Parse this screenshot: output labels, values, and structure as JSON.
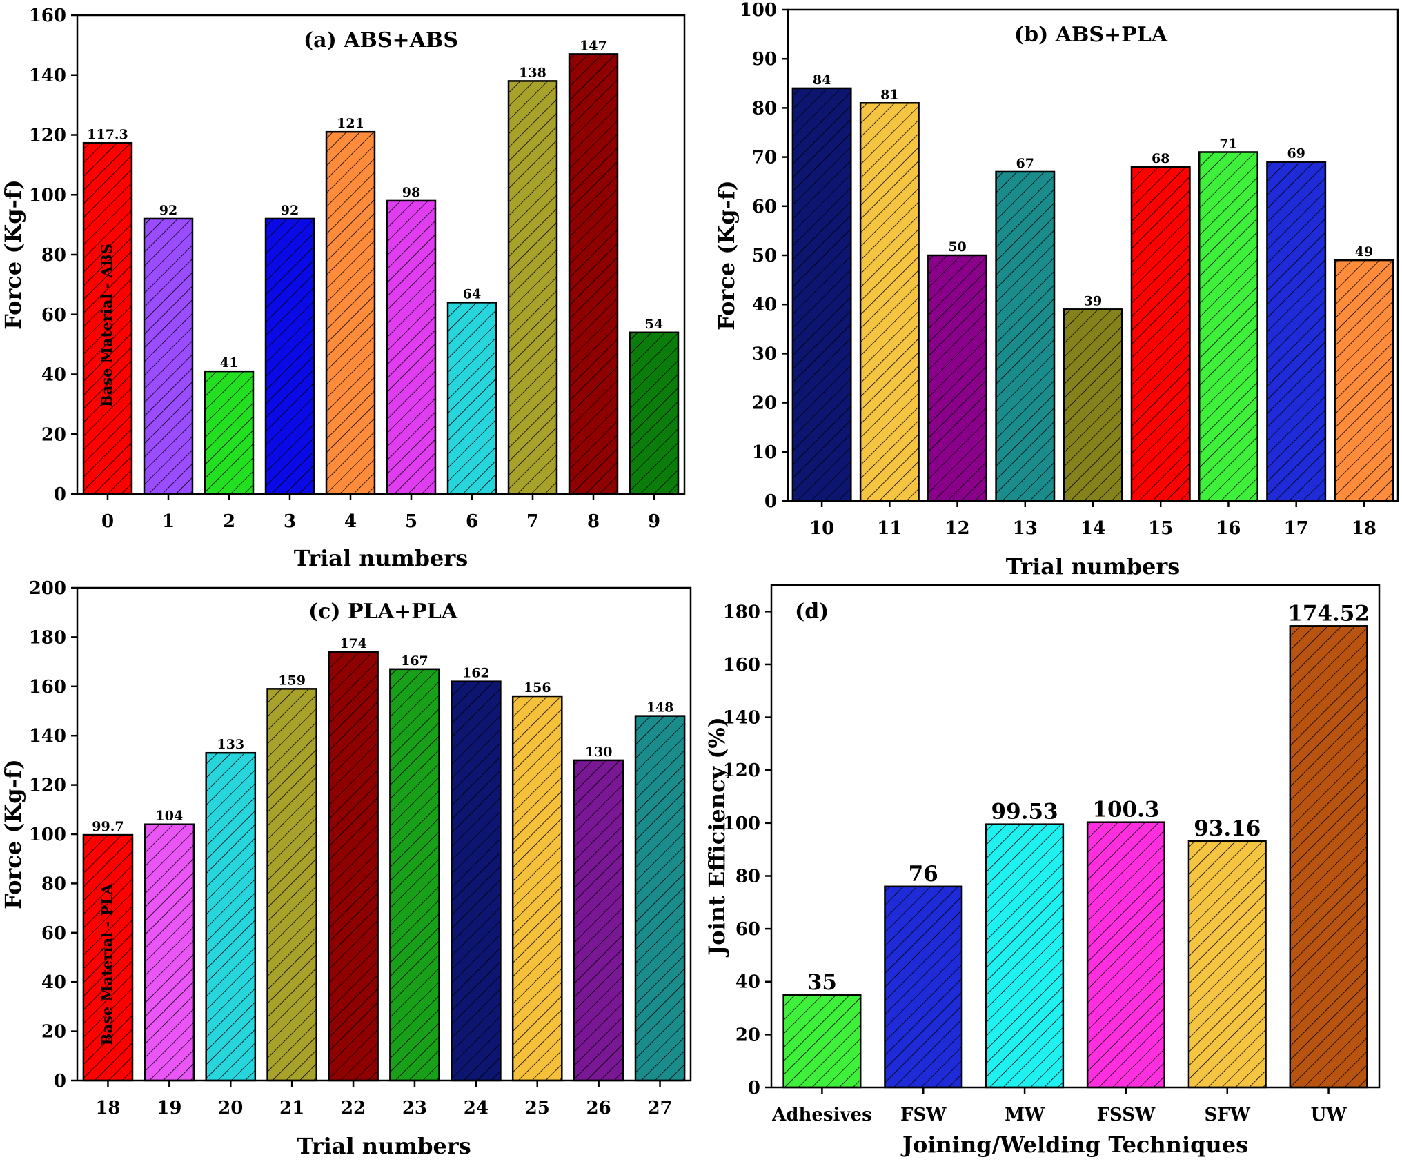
{
  "colors": {
    "red": "#ff0000",
    "purple": "#9a4dff",
    "green": "#22e01f",
    "blue": "#0a0ae6",
    "orange": "#ff8c3a",
    "magenta": "#e03cf0",
    "cyan": "#27d6dc",
    "olive": "#a8a22a",
    "darkred": "#8f0000",
    "darkgreen": "#0a7d0a",
    "navy": "#0c1570",
    "gold": "#f5c542",
    "violet": "#8a008a",
    "teal": "#1a8c8c",
    "darkolive": "#85821b",
    "lime": "#3ff03a",
    "royal": "#1e2bd6",
    "pink": "#ff2fdf",
    "aqua": "#1ff0f0",
    "brown": "#b85410",
    "lightmagenta": "#ea55f5",
    "purple2": "#7a1795",
    "green2": "#18a018",
    "gold2": "#f5c03a"
  },
  "chart_data": [
    {
      "type": "bar",
      "title": "(a) ABS+ABS",
      "xlabel": "Trial numbers",
      "ylabel": "Force (Kg-f)",
      "ylim": [
        0,
        160
      ],
      "yticks": [
        0,
        20,
        40,
        60,
        80,
        100,
        120,
        140,
        160
      ],
      "categories": [
        "0",
        "1",
        "2",
        "3",
        "4",
        "5",
        "6",
        "7",
        "8",
        "9"
      ],
      "values": [
        117.3,
        92,
        41,
        92,
        121,
        98,
        64,
        138,
        147,
        54
      ],
      "labels": [
        "117.3",
        "92",
        "41",
        "92",
        "121",
        "98",
        "64",
        "138",
        "147",
        "54"
      ],
      "bar_colors": [
        "red",
        "purple",
        "green",
        "blue",
        "orange",
        "magenta",
        "cyan",
        "olive",
        "darkred",
        "darkgreen"
      ],
      "base_note": "Base Material - ABS"
    },
    {
      "type": "bar",
      "title": "(b) ABS+PLA",
      "xlabel": "Trial numbers",
      "ylabel": "Force (Kg-f)",
      "ylim": [
        0,
        100
      ],
      "yticks": [
        0,
        10,
        20,
        30,
        40,
        50,
        60,
        70,
        80,
        90,
        100
      ],
      "categories": [
        "10",
        "11",
        "12",
        "13",
        "14",
        "15",
        "16",
        "17",
        "18"
      ],
      "values": [
        84,
        81,
        50,
        67,
        39,
        68,
        71,
        69,
        49
      ],
      "labels": [
        "84",
        "81",
        "50",
        "67",
        "39",
        "68",
        "71",
        "69",
        "49"
      ],
      "bar_colors": [
        "navy",
        "gold",
        "violet",
        "teal",
        "darkolive",
        "red",
        "lime",
        "royal",
        "orange"
      ]
    },
    {
      "type": "bar",
      "title": "(c) PLA+PLA",
      "xlabel": "Trial numbers",
      "ylabel": "Force (Kg-f)",
      "ylim": [
        0,
        200
      ],
      "yticks": [
        0,
        20,
        40,
        60,
        80,
        100,
        120,
        140,
        160,
        180,
        200
      ],
      "categories": [
        "18",
        "19",
        "20",
        "21",
        "22",
        "23",
        "24",
        "25",
        "26",
        "27"
      ],
      "values": [
        99.7,
        104,
        133,
        159,
        174,
        167,
        162,
        156,
        130,
        148
      ],
      "labels": [
        "99.7",
        "104",
        "133",
        "159",
        "174",
        "167",
        "162",
        "156",
        "130",
        "148"
      ],
      "bar_colors": [
        "red",
        "lightmagenta",
        "cyan",
        "olive",
        "darkred",
        "green2",
        "navy",
        "gold2",
        "purple2",
        "teal"
      ],
      "base_note": "Base Material - PLA"
    },
    {
      "type": "bar",
      "title": "(d)",
      "xlabel": "Joining/Welding Techniques",
      "ylabel": "Joint Efficiency (%)",
      "ylim": [
        0,
        190
      ],
      "yticks": [
        0,
        20,
        40,
        60,
        80,
        100,
        120,
        140,
        160,
        180
      ],
      "categories": [
        "Adhesives",
        "FSW",
        "MW",
        "FSSW",
        "SFW",
        "UW"
      ],
      "values": [
        35,
        76,
        99.53,
        100.3,
        93.16,
        174.52
      ],
      "labels": [
        "35",
        "76",
        "99.53",
        "100.3",
        "93.16",
        "174.52"
      ],
      "bar_colors": [
        "lime",
        "royal",
        "aqua",
        "pink",
        "gold",
        "brown"
      ]
    }
  ]
}
